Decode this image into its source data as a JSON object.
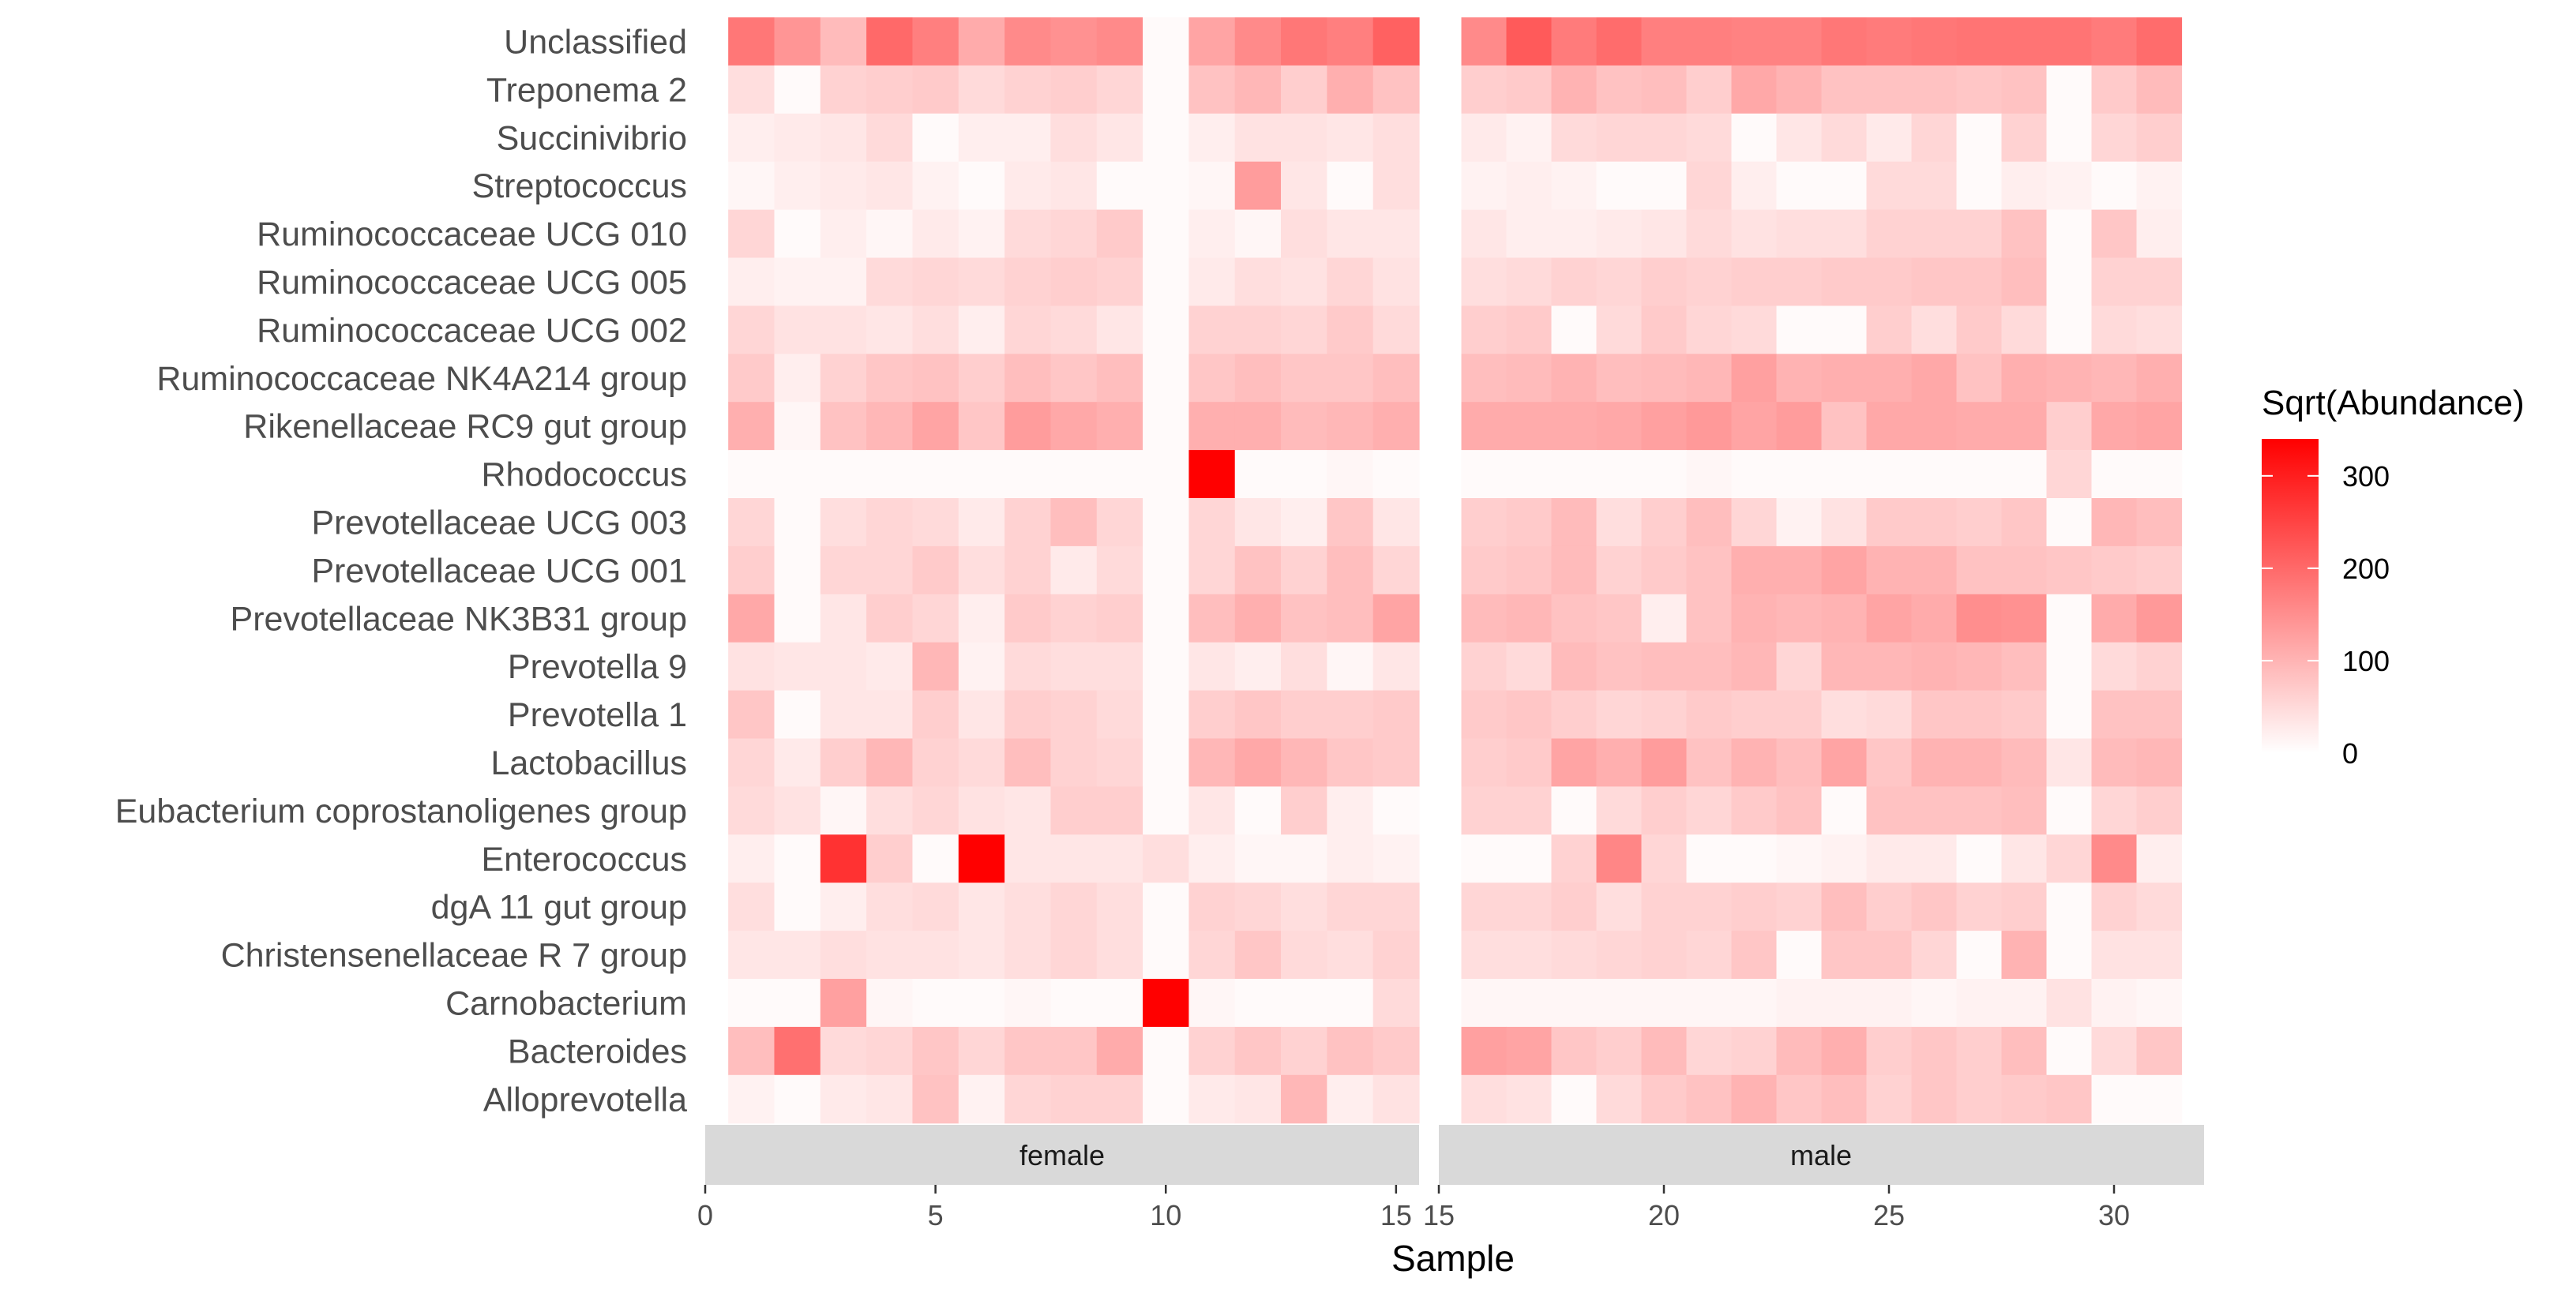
{
  "chart_data": {
    "type": "heatmap",
    "title": "",
    "xlabel": "Sample",
    "ylabel": "",
    "legend": {
      "title": "Sqrt(Abundance)",
      "breaks": [
        0,
        100,
        200,
        300
      ],
      "labels": [
        "0",
        "100",
        "200",
        "300"
      ],
      "range": [
        0,
        340
      ],
      "low_color": "#ffffff",
      "high_color": "#ff0000",
      "placement": "right"
    },
    "genera": [
      "Unclassified",
      "Treponema 2",
      "Succinivibrio",
      "Streptococcus",
      "Ruminococcaceae UCG 010",
      "Ruminococcaceae UCG 005",
      "Ruminococcaceae UCG 002",
      "Ruminococcaceae NK4A214 group",
      "Rikenellaceae RC9 gut group",
      "Rhodococcus",
      "Prevotellaceae UCG 003",
      "Prevotellaceae UCG 001",
      "Prevotellaceae NK3B31 group",
      "Prevotella 9",
      "Prevotella 1",
      "Lactobacillus",
      "Eubacterium coprostanoligenes group",
      "Enterococcus",
      "dgA 11 gut group",
      "Christensenellaceae R 7 group",
      "Carnobacterium",
      "Bacteroides",
      "Alloprevotella"
    ],
    "facets": [
      {
        "label": "female",
        "samples": [
          1,
          2,
          3,
          4,
          5,
          6,
          7,
          8,
          9,
          10,
          11,
          12,
          13,
          14,
          15
        ],
        "xlim": [
          0,
          15.5
        ],
        "xticks": [
          0,
          5,
          10,
          15
        ],
        "values": [
          [
            175,
            135,
            85,
            195,
            165,
            105,
            150,
            140,
            150,
            5,
            115,
            150,
            175,
            165,
            205
          ],
          [
            40,
            5,
            55,
            60,
            65,
            45,
            55,
            60,
            50,
            5,
            75,
            90,
            60,
            100,
            75
          ],
          [
            20,
            25,
            30,
            45,
            5,
            20,
            20,
            40,
            30,
            5,
            20,
            35,
            35,
            30,
            40
          ],
          [
            10,
            20,
            25,
            30,
            15,
            5,
            25,
            30,
            5,
            5,
            10,
            125,
            30,
            5,
            40
          ],
          [
            50,
            5,
            20,
            10,
            25,
            15,
            45,
            50,
            65,
            5,
            20,
            10,
            40,
            30,
            30
          ],
          [
            20,
            15,
            15,
            45,
            50,
            45,
            55,
            60,
            55,
            5,
            25,
            40,
            35,
            50,
            35
          ],
          [
            50,
            35,
            35,
            30,
            40,
            20,
            50,
            45,
            30,
            5,
            55,
            55,
            50,
            65,
            45
          ],
          [
            65,
            20,
            55,
            70,
            75,
            60,
            80,
            70,
            80,
            5,
            70,
            80,
            70,
            70,
            80
          ],
          [
            100,
            10,
            75,
            90,
            115,
            70,
            125,
            110,
            100,
            5,
            100,
            100,
            85,
            90,
            100
          ],
          [
            5,
            5,
            5,
            5,
            5,
            5,
            5,
            5,
            5,
            5,
            340,
            5,
            5,
            10,
            5
          ],
          [
            50,
            5,
            40,
            50,
            45,
            25,
            55,
            80,
            50,
            5,
            50,
            30,
            20,
            70,
            30
          ],
          [
            60,
            5,
            50,
            50,
            65,
            40,
            55,
            25,
            45,
            5,
            50,
            75,
            55,
            80,
            50
          ],
          [
            110,
            5,
            30,
            60,
            50,
            20,
            65,
            55,
            60,
            5,
            80,
            100,
            75,
            80,
            115
          ],
          [
            35,
            30,
            30,
            25,
            90,
            15,
            45,
            40,
            40,
            5,
            30,
            20,
            40,
            10,
            30
          ],
          [
            70,
            5,
            30,
            30,
            60,
            30,
            60,
            55,
            45,
            5,
            60,
            70,
            60,
            60,
            65
          ],
          [
            50,
            25,
            60,
            90,
            55,
            45,
            80,
            55,
            50,
            5,
            90,
            110,
            90,
            70,
            65
          ],
          [
            45,
            35,
            10,
            40,
            50,
            35,
            30,
            60,
            60,
            5,
            30,
            5,
            60,
            20,
            5
          ],
          [
            20,
            5,
            270,
            60,
            5,
            340,
            30,
            30,
            30,
            40,
            20,
            10,
            10,
            20,
            15
          ],
          [
            40,
            5,
            20,
            40,
            45,
            30,
            40,
            50,
            40,
            5,
            55,
            50,
            40,
            50,
            50
          ],
          [
            30,
            30,
            40,
            35,
            35,
            30,
            40,
            50,
            40,
            5,
            50,
            70,
            45,
            40,
            55
          ],
          [
            5,
            5,
            120,
            10,
            5,
            5,
            10,
            5,
            5,
            340,
            10,
            5,
            5,
            5,
            45
          ],
          [
            80,
            185,
            45,
            50,
            70,
            50,
            70,
            70,
            105,
            5,
            55,
            70,
            55,
            75,
            65
          ],
          [
            15,
            5,
            25,
            30,
            75,
            15,
            50,
            55,
            55,
            5,
            25,
            30,
            90,
            20,
            35
          ]
        ]
      },
      {
        "label": "male",
        "samples": [
          16,
          17,
          18,
          19,
          20,
          21,
          22,
          23,
          24,
          25,
          26,
          27,
          28,
          29,
          30,
          31
        ],
        "xlim": [
          15,
          32
        ],
        "xticks": [
          15,
          20,
          25,
          30
        ],
        "values": [
          [
            150,
            215,
            170,
            190,
            165,
            165,
            160,
            160,
            175,
            170,
            175,
            180,
            180,
            180,
            170,
            190
          ],
          [
            60,
            65,
            95,
            75,
            80,
            60,
            110,
            95,
            75,
            75,
            75,
            70,
            75,
            5,
            65,
            85
          ],
          [
            25,
            15,
            45,
            50,
            50,
            45,
            5,
            30,
            45,
            25,
            50,
            5,
            55,
            5,
            50,
            60
          ],
          [
            15,
            20,
            15,
            5,
            5,
            50,
            20,
            5,
            5,
            45,
            45,
            5,
            20,
            15,
            5,
            15
          ],
          [
            30,
            20,
            20,
            25,
            30,
            45,
            35,
            40,
            40,
            55,
            55,
            55,
            75,
            5,
            70,
            20
          ],
          [
            40,
            45,
            55,
            50,
            60,
            55,
            60,
            60,
            65,
            65,
            70,
            70,
            80,
            5,
            55,
            55
          ],
          [
            60,
            65,
            5,
            45,
            65,
            50,
            45,
            5,
            5,
            60,
            40,
            65,
            45,
            5,
            45,
            40
          ],
          [
            80,
            85,
            95,
            80,
            85,
            90,
            120,
            95,
            100,
            100,
            110,
            75,
            100,
            95,
            90,
            100
          ],
          [
            105,
            105,
            105,
            110,
            120,
            130,
            115,
            125,
            75,
            110,
            110,
            105,
            105,
            60,
            110,
            115
          ],
          [
            5,
            5,
            5,
            5,
            5,
            10,
            5,
            5,
            5,
            5,
            5,
            5,
            5,
            50,
            5,
            5
          ],
          [
            60,
            65,
            85,
            40,
            60,
            80,
            50,
            15,
            35,
            65,
            65,
            60,
            70,
            5,
            90,
            80
          ],
          [
            65,
            70,
            85,
            55,
            65,
            75,
            100,
            100,
            115,
            95,
            95,
            75,
            75,
            70,
            65,
            60
          ],
          [
            85,
            90,
            75,
            70,
            20,
            75,
            95,
            90,
            95,
            115,
            105,
            145,
            140,
            5,
            105,
            130
          ],
          [
            55,
            45,
            85,
            75,
            80,
            80,
            90,
            50,
            90,
            90,
            95,
            90,
            80,
            5,
            45,
            55
          ],
          [
            65,
            70,
            60,
            50,
            55,
            65,
            60,
            60,
            40,
            45,
            70,
            70,
            65,
            5,
            75,
            75
          ],
          [
            60,
            65,
            115,
            100,
            125,
            75,
            95,
            80,
            115,
            70,
            95,
            95,
            85,
            30,
            85,
            90
          ],
          [
            55,
            55,
            5,
            45,
            60,
            50,
            65,
            75,
            5,
            75,
            75,
            75,
            80,
            5,
            50,
            60
          ],
          [
            5,
            5,
            55,
            155,
            50,
            5,
            5,
            10,
            15,
            25,
            25,
            5,
            30,
            50,
            150,
            20
          ],
          [
            50,
            50,
            60,
            40,
            55,
            55,
            60,
            55,
            80,
            60,
            70,
            55,
            60,
            5,
            55,
            45
          ],
          [
            40,
            40,
            45,
            50,
            55,
            50,
            70,
            5,
            70,
            70,
            50,
            5,
            95,
            5,
            35,
            35
          ],
          [
            10,
            10,
            10,
            10,
            10,
            10,
            10,
            15,
            15,
            15,
            10,
            15,
            15,
            35,
            15,
            10
          ],
          [
            120,
            115,
            70,
            60,
            85,
            50,
            55,
            85,
            100,
            60,
            70,
            60,
            80,
            5,
            45,
            70
          ],
          [
            40,
            35,
            5,
            45,
            65,
            75,
            95,
            70,
            80,
            55,
            70,
            60,
            65,
            70,
            5,
            5
          ]
        ]
      }
    ]
  }
}
